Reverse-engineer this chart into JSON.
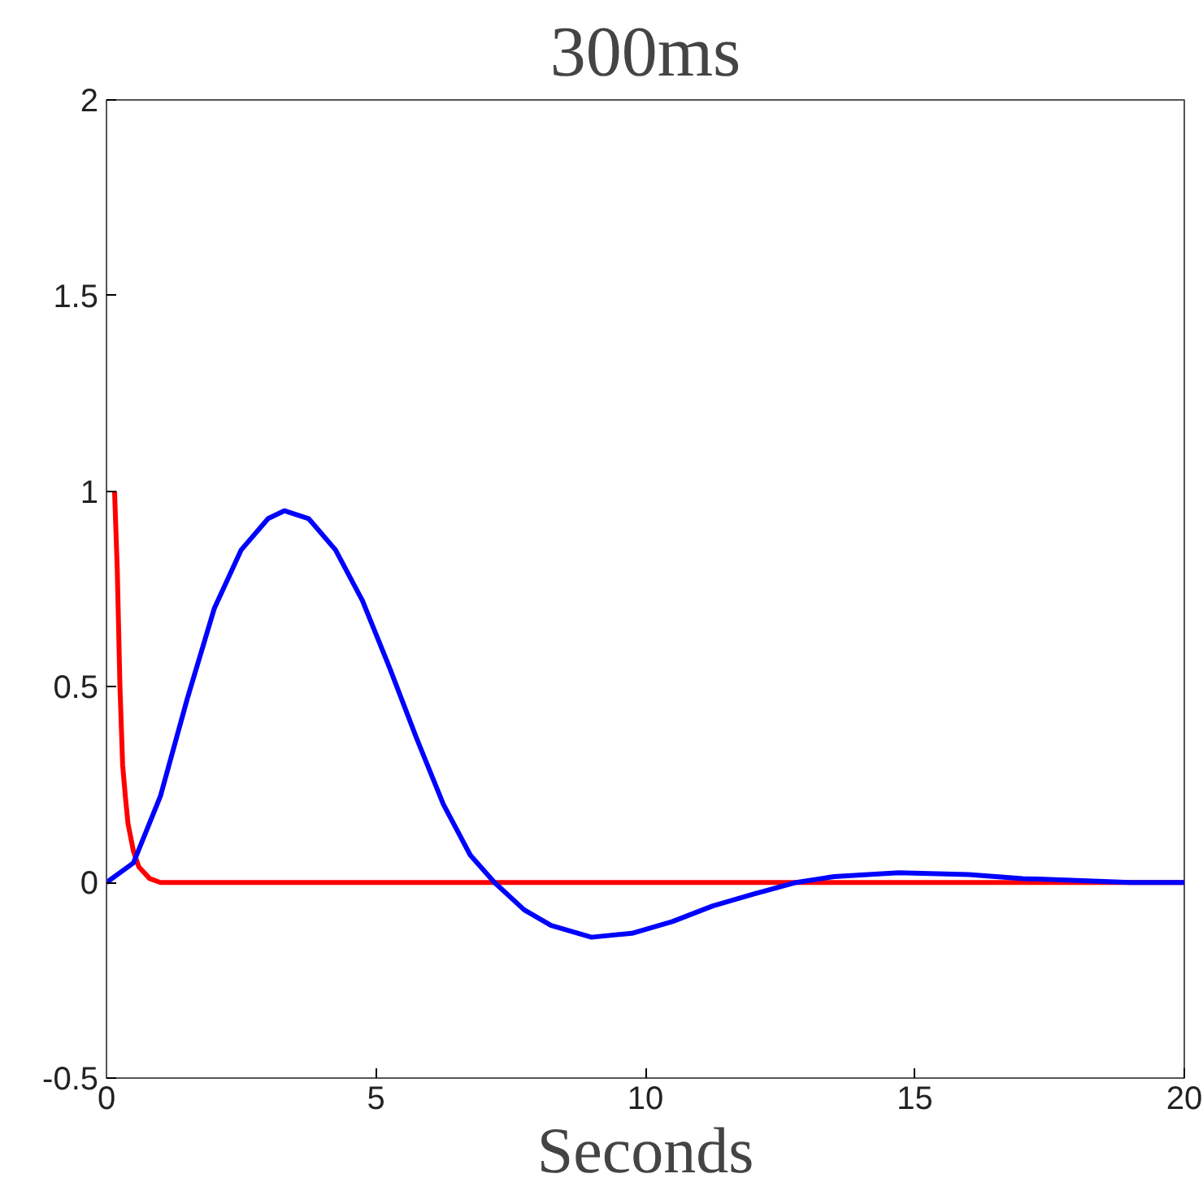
{
  "chart_data": {
    "type": "line",
    "title": "300ms",
    "xlabel": "Seconds",
    "xlim": [
      0,
      20
    ],
    "xticks": [
      0,
      5,
      10,
      15,
      20
    ],
    "ylim": [
      -0.5,
      2
    ],
    "yticks": [
      -0.5,
      0,
      0.5,
      1,
      1.5,
      2
    ],
    "grid": false,
    "marker": "none",
    "line_style": "solid",
    "series": [
      {
        "color": "#ff0000",
        "x": [
          0.15,
          0.2,
          0.25,
          0.3,
          0.35,
          0.4,
          0.5,
          0.6,
          0.8,
          1,
          20
        ],
        "values": [
          1,
          0.8,
          0.5,
          0.3,
          0.22,
          0.15,
          0.08,
          0.04,
          0.01,
          0,
          0
        ]
      },
      {
        "color": "#0000ff",
        "x": [
          0,
          0.5,
          1,
          1.5,
          2,
          2.5,
          3,
          3.3,
          3.75,
          4.25,
          4.75,
          5.25,
          5.75,
          6.25,
          6.75,
          7.2,
          7.75,
          8.25,
          9,
          9.75,
          10.5,
          11.25,
          12,
          12.8,
          13.5,
          14.7,
          16,
          17,
          18,
          19,
          20
        ],
        "values": [
          0,
          0.05,
          0.22,
          0.47,
          0.7,
          0.85,
          0.93,
          0.95,
          0.93,
          0.85,
          0.72,
          0.55,
          0.37,
          0.2,
          0.07,
          0,
          -0.07,
          -0.11,
          -0.14,
          -0.13,
          -0.1,
          -0.06,
          -0.03,
          0,
          0.015,
          0.025,
          0.02,
          0.01,
          0.005,
          0,
          0
        ]
      }
    ]
  }
}
